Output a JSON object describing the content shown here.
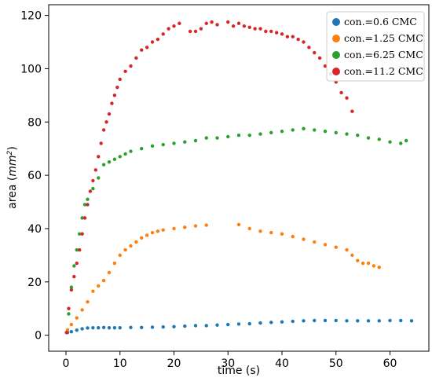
{
  "chart_data": {
    "type": "scatter",
    "xlabel": "time (s)",
    "ylabel_prefix": "area (",
    "ylabel_unit_base": "mm",
    "ylabel_unit_exp": "2",
    "ylabel_suffix": ")",
    "xlim": [
      -3.2,
      67.2
    ],
    "ylim": [
      -6,
      124
    ],
    "xticks": [
      0,
      10,
      20,
      30,
      40,
      50,
      60
    ],
    "yticks": [
      0,
      20,
      40,
      60,
      80,
      100,
      120
    ],
    "grid": false,
    "legend_position": "top-right",
    "series": [
      {
        "name": "con.=0.6 CMC",
        "color": "#1f77b4",
        "points": [
          [
            0.3,
            1.0
          ],
          [
            1,
            1.3
          ],
          [
            2,
            1.9
          ],
          [
            3,
            2.4
          ],
          [
            4,
            2.7
          ],
          [
            5,
            2.8
          ],
          [
            6,
            2.8
          ],
          [
            7,
            2.9
          ],
          [
            8,
            2.8
          ],
          [
            9,
            2.8
          ],
          [
            10,
            2.8
          ],
          [
            12,
            2.9
          ],
          [
            14,
            2.9
          ],
          [
            16,
            3.0
          ],
          [
            18,
            3.1
          ],
          [
            20,
            3.2
          ],
          [
            22,
            3.4
          ],
          [
            24,
            3.6
          ],
          [
            26,
            3.6
          ],
          [
            28,
            3.8
          ],
          [
            30,
            4.0
          ],
          [
            32,
            4.2
          ],
          [
            34,
            4.3
          ],
          [
            36,
            4.6
          ],
          [
            38,
            4.8
          ],
          [
            40,
            5.0
          ],
          [
            42,
            5.2
          ],
          [
            44,
            5.4
          ],
          [
            46,
            5.5
          ],
          [
            48,
            5.5
          ],
          [
            50,
            5.5
          ],
          [
            52,
            5.4
          ],
          [
            54,
            5.4
          ],
          [
            56,
            5.4
          ],
          [
            58,
            5.4
          ],
          [
            60,
            5.5
          ],
          [
            62,
            5.5
          ],
          [
            64,
            5.4
          ]
        ]
      },
      {
        "name": "con.=1.25 CMC",
        "color": "#ff7f0e",
        "points": [
          [
            0.3,
            2.0
          ],
          [
            1,
            4.0
          ],
          [
            2,
            6.5
          ],
          [
            3,
            9.5
          ],
          [
            4,
            12.5
          ],
          [
            5,
            16.5
          ],
          [
            6,
            18.5
          ],
          [
            7,
            20.5
          ],
          [
            8,
            23.5
          ],
          [
            9,
            27.0
          ],
          [
            10,
            30.0
          ],
          [
            11,
            32.0
          ],
          [
            12,
            33.5
          ],
          [
            13,
            35.0
          ],
          [
            14,
            36.5
          ],
          [
            15,
            37.5
          ],
          [
            16,
            38.5
          ],
          [
            17,
            39.0
          ],
          [
            18,
            39.5
          ],
          [
            20,
            40.0
          ],
          [
            22,
            40.5
          ],
          [
            24,
            41.0
          ],
          [
            26,
            41.3
          ],
          [
            32,
            41.5
          ],
          [
            34,
            40.0
          ],
          [
            36,
            39.0
          ],
          [
            38,
            38.5
          ],
          [
            40,
            38.0
          ],
          [
            42,
            37.0
          ],
          [
            44,
            36.0
          ],
          [
            46,
            35.0
          ],
          [
            48,
            34.0
          ],
          [
            50,
            33.0
          ],
          [
            52,
            32.0
          ],
          [
            53,
            30.0
          ],
          [
            54,
            28.0
          ],
          [
            55,
            27.0
          ],
          [
            56,
            27.0
          ],
          [
            57,
            26.0
          ],
          [
            58,
            25.5
          ]
        ]
      },
      {
        "name": "con.=6.25 CMC",
        "color": "#2ca02c",
        "points": [
          [
            0.1,
            1
          ],
          [
            0.5,
            8
          ],
          [
            1,
            18
          ],
          [
            1.5,
            26
          ],
          [
            2,
            32
          ],
          [
            2.5,
            38
          ],
          [
            3,
            44
          ],
          [
            3.5,
            49
          ],
          [
            4,
            51
          ],
          [
            5,
            55
          ],
          [
            6,
            59
          ],
          [
            7,
            64
          ],
          [
            8,
            65
          ],
          [
            9,
            66
          ],
          [
            10,
            67
          ],
          [
            11,
            68
          ],
          [
            12,
            69
          ],
          [
            14,
            70
          ],
          [
            16,
            71
          ],
          [
            18,
            71.5
          ],
          [
            20,
            72
          ],
          [
            22,
            72.5
          ],
          [
            24,
            73
          ],
          [
            26,
            74
          ],
          [
            28,
            74
          ],
          [
            30,
            74.5
          ],
          [
            32,
            75
          ],
          [
            34,
            75
          ],
          [
            36,
            75.5
          ],
          [
            38,
            76
          ],
          [
            40,
            76.5
          ],
          [
            42,
            77
          ],
          [
            44,
            77.5
          ],
          [
            46,
            77
          ],
          [
            48,
            76.5
          ],
          [
            50,
            76
          ],
          [
            52,
            75.5
          ],
          [
            54,
            75
          ],
          [
            56,
            74
          ],
          [
            58,
            73.5
          ],
          [
            60,
            72.5
          ],
          [
            62,
            72
          ],
          [
            63,
            73
          ]
        ]
      },
      {
        "name": "con.=11.2 CMC",
        "color": "#d62728",
        "points": [
          [
            0.1,
            1
          ],
          [
            0.5,
            10
          ],
          [
            1,
            17
          ],
          [
            1.5,
            22
          ],
          [
            2,
            27
          ],
          [
            2.5,
            32
          ],
          [
            3,
            38
          ],
          [
            3.5,
            44
          ],
          [
            4,
            49
          ],
          [
            4.5,
            54
          ],
          [
            5,
            58
          ],
          [
            5.5,
            62
          ],
          [
            6,
            67
          ],
          [
            6.5,
            72
          ],
          [
            7,
            77
          ],
          [
            7.5,
            80
          ],
          [
            8,
            83
          ],
          [
            8.5,
            87
          ],
          [
            9,
            90
          ],
          [
            9.5,
            93
          ],
          [
            10,
            96
          ],
          [
            11,
            99
          ],
          [
            12,
            101
          ],
          [
            13,
            104
          ],
          [
            14,
            107
          ],
          [
            15,
            108
          ],
          [
            16,
            110
          ],
          [
            17,
            111
          ],
          [
            18,
            113
          ],
          [
            19,
            115
          ],
          [
            20,
            116
          ],
          [
            21,
            117
          ],
          [
            23,
            114
          ],
          [
            24,
            114
          ],
          [
            25,
            115
          ],
          [
            26,
            117
          ],
          [
            27,
            117.5
          ],
          [
            28,
            116.5
          ],
          [
            30,
            117.5
          ],
          [
            31,
            116
          ],
          [
            32,
            117
          ],
          [
            33,
            116
          ],
          [
            34,
            115.5
          ],
          [
            35,
            115
          ],
          [
            36,
            115
          ],
          [
            37,
            114
          ],
          [
            38,
            114
          ],
          [
            39,
            113.5
          ],
          [
            40,
            113
          ],
          [
            41,
            112
          ],
          [
            42,
            112
          ],
          [
            43,
            111
          ],
          [
            44,
            110
          ],
          [
            45,
            108
          ],
          [
            46,
            106
          ],
          [
            47,
            104
          ],
          [
            48,
            101
          ],
          [
            49,
            98
          ],
          [
            50,
            95
          ],
          [
            51,
            91
          ],
          [
            52,
            89
          ],
          [
            53,
            84
          ]
        ]
      }
    ]
  }
}
